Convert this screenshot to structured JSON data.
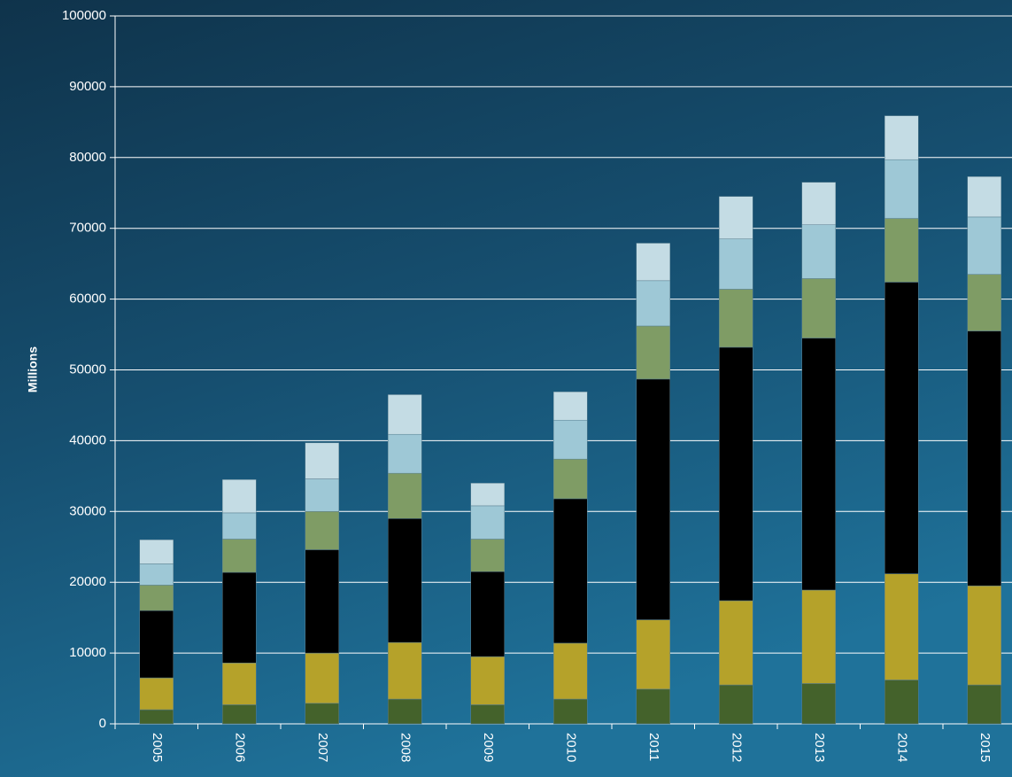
{
  "chart_data": {
    "type": "stacked-bar",
    "y_label": "Millions",
    "categories": [
      "2005",
      "2006",
      "2007",
      "2008",
      "2009",
      "2010",
      "2011",
      "2012",
      "2013",
      "2014",
      "2015"
    ],
    "series": [
      {
        "color": "#44622b",
        "values": [
          2000,
          2700,
          2900,
          3500,
          2700,
          3500,
          4900,
          5500,
          5700,
          6200,
          5500
        ]
      },
      {
        "color": "#b5a22a",
        "values": [
          4500,
          5900,
          7100,
          8000,
          6800,
          7900,
          9800,
          11900,
          13200,
          15000,
          14000
        ]
      },
      {
        "color": "#000000",
        "values": [
          9500,
          12800,
          14600,
          17500,
          12000,
          20400,
          34000,
          35800,
          35600,
          41200,
          36000
        ]
      },
      {
        "color": "#7f9c65",
        "values": [
          3600,
          4700,
          5400,
          6400,
          4600,
          5600,
          7500,
          8200,
          8400,
          9000,
          8000
        ]
      },
      {
        "color": "#9ec8d6",
        "values": [
          3000,
          3700,
          4600,
          5500,
          4700,
          5500,
          6400,
          7100,
          7600,
          8300,
          8100
        ]
      },
      {
        "color": "#c4dce4",
        "values": [
          3400,
          4700,
          5100,
          5600,
          3200,
          4000,
          5300,
          6000,
          6000,
          6200,
          5700
        ]
      }
    ],
    "ylim": [
      0,
      100000
    ],
    "yticks": [
      0,
      10000,
      20000,
      30000,
      40000,
      50000,
      60000,
      70000,
      80000,
      90000,
      100000
    ],
    "grid": true
  }
}
